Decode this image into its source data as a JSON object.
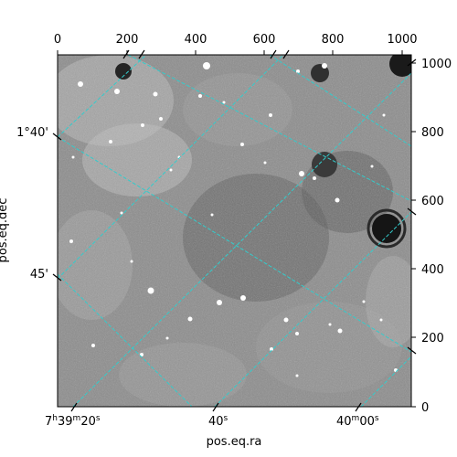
{
  "figure": {
    "xlabel": "pos.eq.ra",
    "ylabel": "pos.eq.dec",
    "pixel_x_ticks": [
      "0",
      "200",
      "400",
      "600",
      "800",
      "1000"
    ],
    "pixel_y_ticks": [
      "0",
      "200",
      "400",
      "600",
      "800",
      "1000"
    ],
    "ra_ticks": [
      {
        "h": "7",
        "m": "39",
        "s": "20",
        "show_hm": true
      },
      {
        "h": "",
        "m": "",
        "s": "40",
        "show_hm": false
      },
      {
        "h": "",
        "m": "40",
        "s": "00",
        "show_hm": true
      }
    ],
    "dec_ticks": [
      "1°40'",
      "45'"
    ],
    "colors": {
      "grid": "#33cccc",
      "frame": "#000000"
    }
  }
}
